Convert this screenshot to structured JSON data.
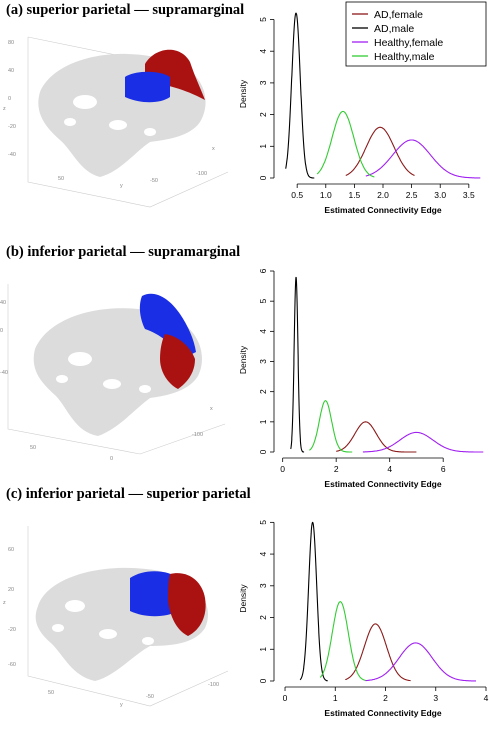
{
  "colors": {
    "ad_female": "#8b1a1a",
    "ad_male": "#000000",
    "healthy_female": "#a020f0",
    "healthy_male": "#33cc33",
    "region_red": "#aa1111",
    "region_blue": "#1a2ee6",
    "brain_gray": "#dcdcdc"
  },
  "panels": [
    {
      "title": "(a) superior parietal — supramarginal",
      "brain_axis_labels": [
        "80",
        "60",
        "40",
        "20",
        "0",
        "-20",
        "-40",
        "-60",
        "z",
        "y",
        "x",
        "50",
        "0",
        "-50",
        "-100"
      ]
    },
    {
      "title": "(b) inferior parietal — supramarginal",
      "brain_axis_labels": [
        "80",
        "60",
        "40",
        "20",
        "0",
        "-20",
        "-40",
        "-60",
        "z",
        "y",
        "x",
        "50",
        "0",
        "-50",
        "-100"
      ]
    },
    {
      "title": "(c) inferior parietal — superior parietal",
      "brain_axis_labels": [
        "80",
        "60",
        "40",
        "20",
        "0",
        "-20",
        "-40",
        "-60",
        "z",
        "y",
        "x",
        "50",
        "0",
        "-50",
        "-100"
      ]
    }
  ],
  "chart_data": [
    {
      "type": "line",
      "xlabel": "Estimated Connectivity Edge",
      "ylabel": "Density",
      "xlim": [
        0.2,
        3.8
      ],
      "ylim": [
        0,
        5.3
      ],
      "xticks": [
        "0.5",
        "1.0",
        "1.5",
        "2.0",
        "2.5",
        "3.0",
        "3.5"
      ],
      "xtick_values": [
        0.5,
        1.0,
        1.5,
        2.0,
        2.5,
        3.0,
        3.5
      ],
      "yticks": [
        "0",
        "1",
        "2",
        "3",
        "4",
        "5"
      ],
      "ytick_values": [
        0,
        1,
        2,
        3,
        4,
        5
      ],
      "legend": {
        "placement": "top-right",
        "entries": [
          "AD,female",
          "AD,male",
          "Healthy,female",
          "Healthy,male"
        ]
      },
      "series": [
        {
          "name": "AD,female",
          "peak_x": 1.95,
          "peak_y": 1.6,
          "sd": 0.245,
          "range": [
            1.35,
            2.55
          ]
        },
        {
          "name": "AD,male",
          "peak_x": 0.48,
          "peak_y": 5.2,
          "sd": 0.075,
          "range": [
            0.3,
            0.8
          ]
        },
        {
          "name": "Healthy,female",
          "peak_x": 2.5,
          "peak_y": 1.2,
          "sd": 0.33,
          "range": [
            1.7,
            3.7
          ]
        },
        {
          "name": "Healthy,male",
          "peak_x": 1.3,
          "peak_y": 2.1,
          "sd": 0.19,
          "range": [
            0.85,
            1.85
          ]
        }
      ]
    },
    {
      "type": "line",
      "xlabel": "Estimated Connectivity Edge",
      "ylabel": "Density",
      "xlim": [
        -0.1,
        7.6
      ],
      "ylim": [
        0,
        6.1
      ],
      "xticks": [
        "0",
        "2",
        "4",
        "6"
      ],
      "xtick_values": [
        0,
        2,
        4,
        6
      ],
      "yticks": [
        "0",
        "1",
        "2",
        "3",
        "4",
        "5",
        "6"
      ],
      "ytick_values": [
        0,
        1,
        2,
        3,
        4,
        5,
        6
      ],
      "legend": null,
      "series": [
        {
          "name": "AD,female",
          "peak_x": 3.1,
          "peak_y": 1.0,
          "sd": 0.4,
          "range": [
            2.0,
            5.0
          ]
        },
        {
          "name": "AD,male",
          "peak_x": 0.5,
          "peak_y": 5.8,
          "sd": 0.07,
          "range": [
            0.3,
            0.8
          ]
        },
        {
          "name": "Healthy,female",
          "peak_x": 5.0,
          "peak_y": 0.65,
          "sd": 0.62,
          "range": [
            3.0,
            7.5
          ]
        },
        {
          "name": "Healthy,male",
          "peak_x": 1.6,
          "peak_y": 1.7,
          "sd": 0.23,
          "range": [
            1.0,
            2.6
          ]
        }
      ]
    },
    {
      "type": "line",
      "xlabel": "Estimated Connectivity Edge",
      "ylabel": "Density",
      "xlim": [
        -0.1,
        4.0
      ],
      "ylim": [
        0,
        5.2
      ],
      "xticks": [
        "0",
        "1",
        "2",
        "3",
        "4"
      ],
      "xtick_values": [
        0,
        1,
        2,
        3,
        4
      ],
      "yticks": [
        "0",
        "1",
        "2",
        "3",
        "4",
        "5"
      ],
      "ytick_values": [
        0,
        1,
        2,
        3,
        4,
        5
      ],
      "legend": null,
      "series": [
        {
          "name": "AD,female",
          "peak_x": 1.8,
          "peak_y": 1.8,
          "sd": 0.22,
          "range": [
            1.2,
            2.5
          ]
        },
        {
          "name": "AD,male",
          "peak_x": 0.55,
          "peak_y": 5.0,
          "sd": 0.08,
          "range": [
            0.3,
            0.85
          ]
        },
        {
          "name": "Healthy,female",
          "peak_x": 2.6,
          "peak_y": 1.2,
          "sd": 0.33,
          "range": [
            1.6,
            3.8
          ]
        },
        {
          "name": "Healthy,male",
          "peak_x": 1.1,
          "peak_y": 2.5,
          "sd": 0.16,
          "range": [
            0.7,
            1.6
          ]
        }
      ]
    }
  ]
}
